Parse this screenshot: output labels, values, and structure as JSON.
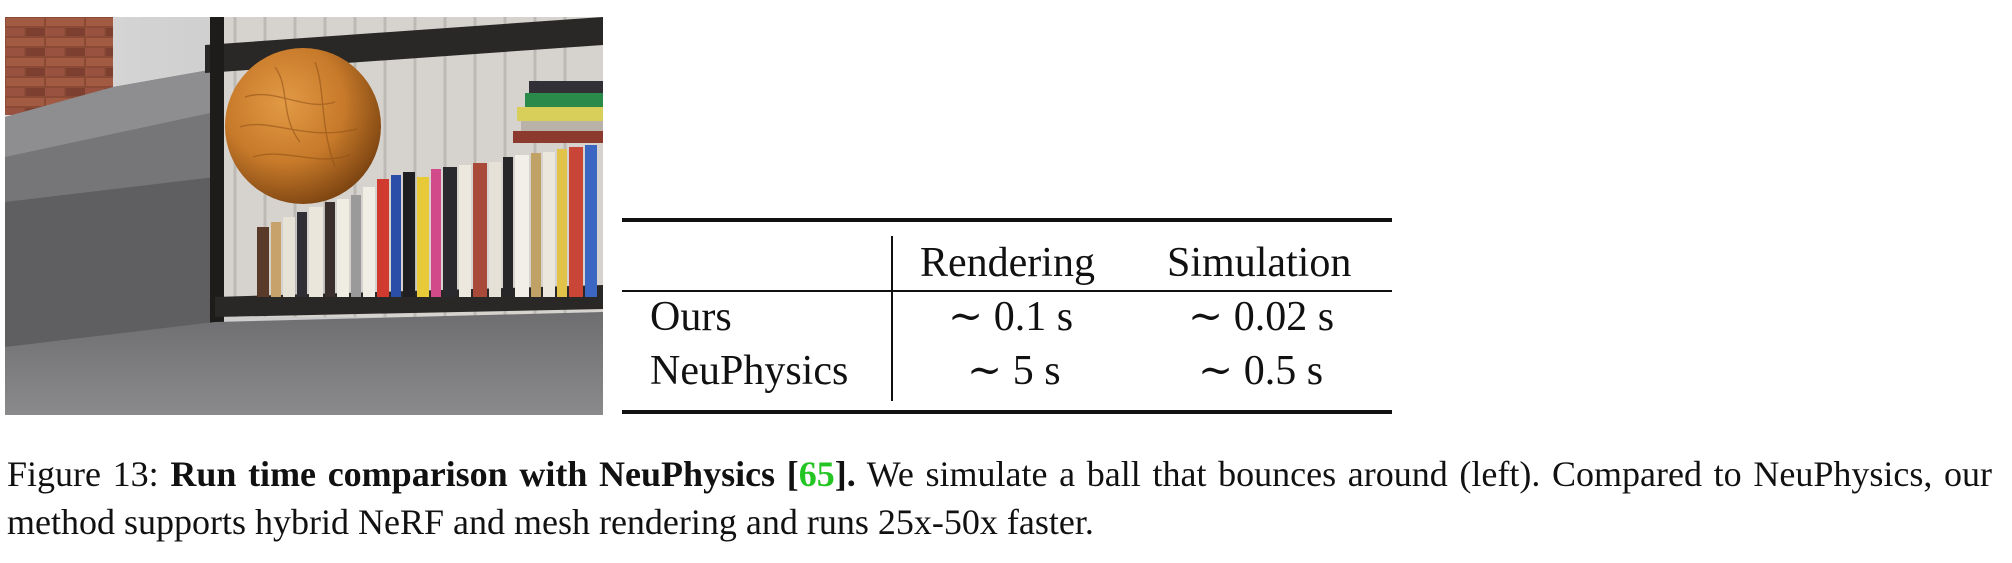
{
  "figure": {
    "render_image": {
      "alt": "",
      "scene_elements": [
        "brick-wall",
        "concrete-steps",
        "bookshelf",
        "books",
        "bouncing-ball",
        "floor"
      ],
      "ball_color": "#c77a2a"
    },
    "table": {
      "headers": [
        "",
        "Rendering",
        "Simulation"
      ],
      "rows": [
        {
          "method": "Ours",
          "rendering": "∼ 0.1 s",
          "simulation": "∼ 0.02 s"
        },
        {
          "method": "NeuPhysics",
          "rendering": "∼ 5 s",
          "simulation": "∼ 0.5 s"
        }
      ]
    },
    "caption": {
      "label": "Figure 13:",
      "bold_title_part1": "Run time comparison with NeuPhysics [",
      "citation": "65",
      "bold_title_part2": "].",
      "text_line1": "We simulate a ball that bounces around (left). Compared to",
      "text_line2": "NeuPhysics, our method supports hybrid NeRF and mesh rendering and runs 25x-50x faster.",
      "citation_color": "#22c522"
    }
  }
}
